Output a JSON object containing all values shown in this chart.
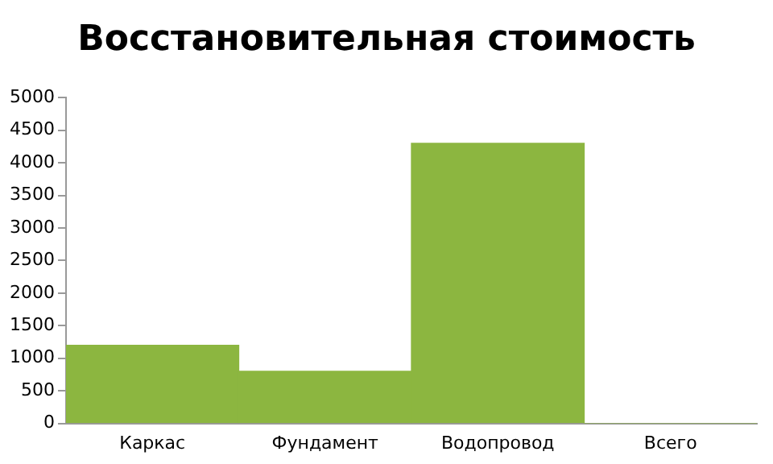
{
  "chart_data": {
    "type": "bar",
    "title": "Восстановительная стоимость",
    "categories": [
      "Каркас",
      "Фундамент",
      "Водопровод",
      "Всего"
    ],
    "values": [
      1200,
      800,
      4300,
      0
    ],
    "color": "#8cb640",
    "ylim": [
      0,
      5000
    ],
    "yticks": [
      0,
      500,
      1000,
      1500,
      2000,
      2500,
      3000,
      3500,
      4000,
      4500,
      5000
    ],
    "grid": false,
    "legend": false
  }
}
